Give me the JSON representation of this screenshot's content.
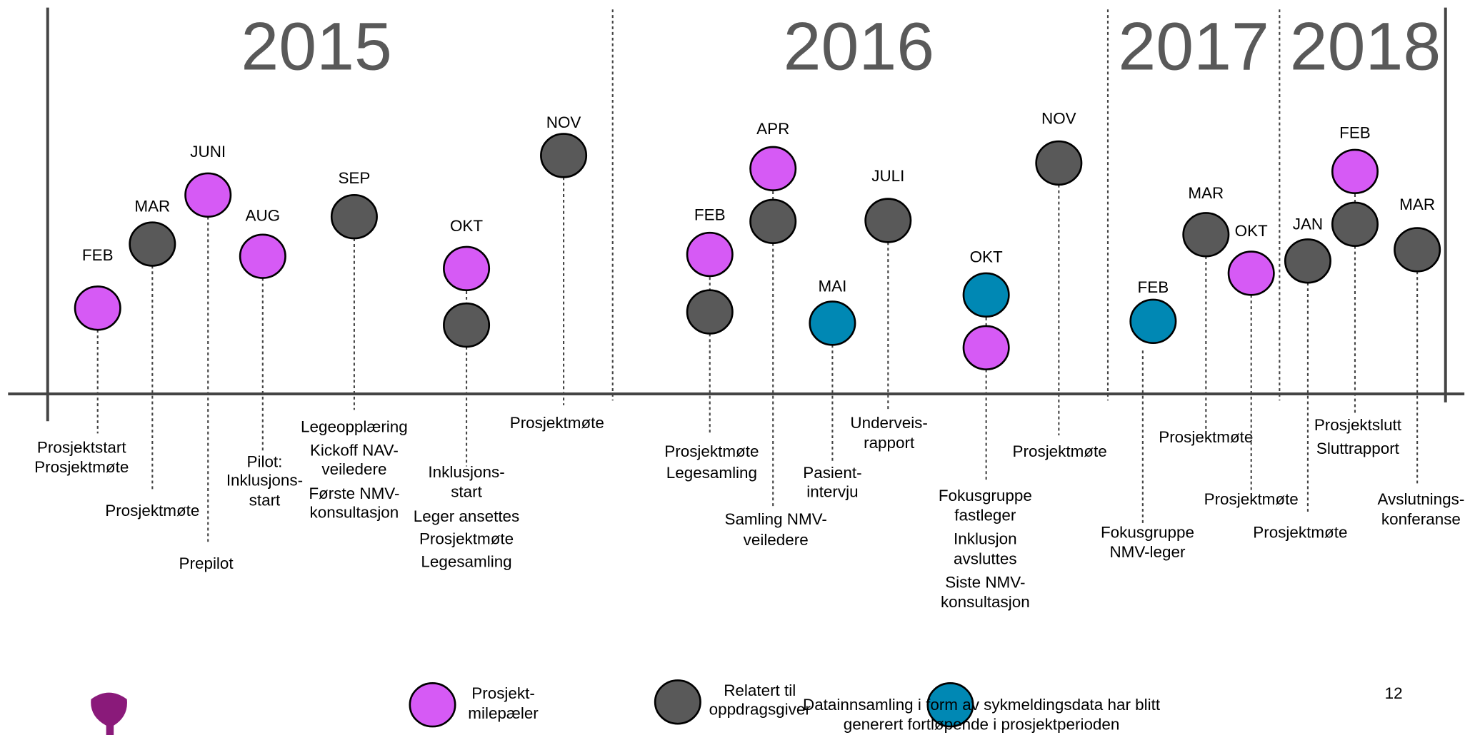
{
  "years": [
    "2015",
    "2016",
    "2017",
    "2018"
  ],
  "events": [
    {
      "month": "FEB",
      "markers": [
        "#d65af5"
      ],
      "lines": [
        "Prosjektstart",
        "Prosjektmøte"
      ]
    },
    {
      "month": "MAR",
      "markers": [
        "#595959"
      ],
      "lines": [
        "Prosjektmøte"
      ]
    },
    {
      "month": "JUNI",
      "markers": [
        "#d65af5"
      ],
      "lines": [
        "Prepilot"
      ]
    },
    {
      "month": "AUG",
      "markers": [
        "#d65af5"
      ],
      "lines": [
        "Pilot:",
        "Inklusjons-",
        "start"
      ]
    },
    {
      "month": "SEP",
      "markers": [
        "#595959"
      ],
      "lines": [
        "Legeopplæring",
        "Kickoff NAV-",
        "veiledere",
        "Første NMV-",
        "konsultasjon"
      ]
    },
    {
      "month": "OKT",
      "markers": [
        "#d65af5",
        "#595959"
      ],
      "lines": [
        "Inklusjons-",
        "start",
        "Leger ansettes",
        "Prosjektmøte",
        "Legesamling"
      ]
    },
    {
      "month": "NOV",
      "markers": [
        "#595959"
      ],
      "lines": [
        "Prosjektmøte"
      ]
    },
    {
      "month": "FEB",
      "markers": [
        "#d65af5",
        "#595959"
      ],
      "lines": [
        "Prosjektmøte",
        "Legesamling"
      ]
    },
    {
      "month": "APR",
      "markers": [
        "#d65af5",
        "#595959"
      ],
      "lines": [
        "Samling NMV-",
        "veiledere"
      ]
    },
    {
      "month": "MAI",
      "markers": [
        "#0088b4"
      ],
      "lines": [
        "Pasient-",
        "intervju"
      ]
    },
    {
      "month": "JULI",
      "markers": [
        "#595959"
      ],
      "lines": [
        "Underveis-",
        "rapport"
      ]
    },
    {
      "month": "OKT",
      "markers": [
        "#0088b4",
        "#d65af5"
      ],
      "lines": [
        "Fokusgruppe",
        "fastleger",
        "Inklusjon",
        "avsluttes",
        "Siste NMV-",
        "konsultasjon"
      ]
    },
    {
      "month": "NOV",
      "markers": [
        "#595959"
      ],
      "lines": [
        "Prosjektmøte"
      ]
    },
    {
      "month": "FEB",
      "markers": [
        "#0088b4"
      ],
      "lines": [
        "Fokusgruppe",
        "NMV-leger"
      ]
    },
    {
      "month": "MAR",
      "markers": [
        "#595959"
      ],
      "lines": [
        "Prosjektmøte"
      ]
    },
    {
      "month": "OKT",
      "markers": [
        "#d65af5"
      ],
      "lines": [
        "Prosjektmøte"
      ]
    },
    {
      "month": "JAN",
      "markers": [
        "#595959"
      ],
      "lines": [
        "Prosjektmøte"
      ]
    },
    {
      "month": "FEB",
      "markers": [
        "#d65af5",
        "#595959"
      ],
      "lines": [
        "Prosjektslutt",
        "Sluttrapport"
      ]
    },
    {
      "month": "MAR",
      "markers": [
        "#595959"
      ],
      "lines": [
        "Avslutnings-",
        "konferanse"
      ]
    }
  ],
  "legend": [
    {
      "color": "#d65af5",
      "lines": [
        "Prosjekt-",
        "milepæler"
      ]
    },
    {
      "color": "#595959",
      "lines": [
        "Relatert til",
        "oppdragsgiver"
      ]
    },
    {
      "color": "#0088b4",
      "lines": [
        "Datainnsamling i form av sykmeldingsdata har blitt",
        "generert fortløpende i prosjektperioden"
      ]
    }
  ],
  "page_number": "12"
}
